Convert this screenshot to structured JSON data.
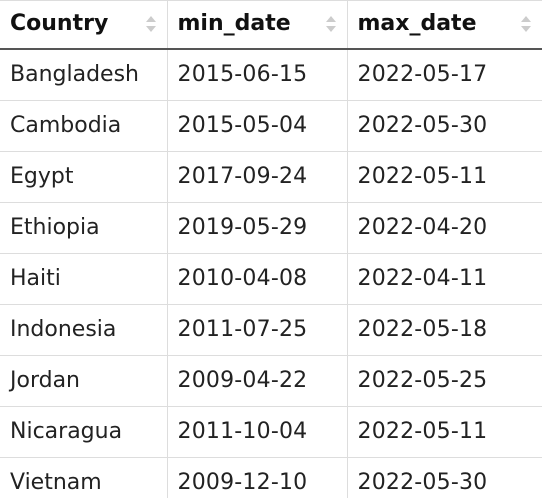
{
  "table": {
    "columns": [
      {
        "label": "Country"
      },
      {
        "label": "min_date"
      },
      {
        "label": "max_date"
      }
    ],
    "rows": [
      [
        "Bangladesh",
        "2015-06-15",
        "2022-05-17"
      ],
      [
        "Cambodia",
        "2015-05-04",
        "2022-05-30"
      ],
      [
        "Egypt",
        "2017-09-24",
        "2022-05-11"
      ],
      [
        "Ethiopia",
        "2019-05-29",
        "2022-04-20"
      ],
      [
        "Haiti",
        "2010-04-08",
        "2022-04-11"
      ],
      [
        "Indonesia",
        "2011-07-25",
        "2022-05-18"
      ],
      [
        "Jordan",
        "2009-04-22",
        "2022-05-25"
      ],
      [
        "Nicaragua",
        "2011-10-04",
        "2022-05-11"
      ],
      [
        "Vietnam",
        "2009-12-10",
        "2022-05-30"
      ]
    ],
    "sort_icon": "sort-updown-icon",
    "colors": {
      "border": "#dddddd",
      "header_rule": "#555555",
      "sort_icon": "#cccccc"
    }
  }
}
